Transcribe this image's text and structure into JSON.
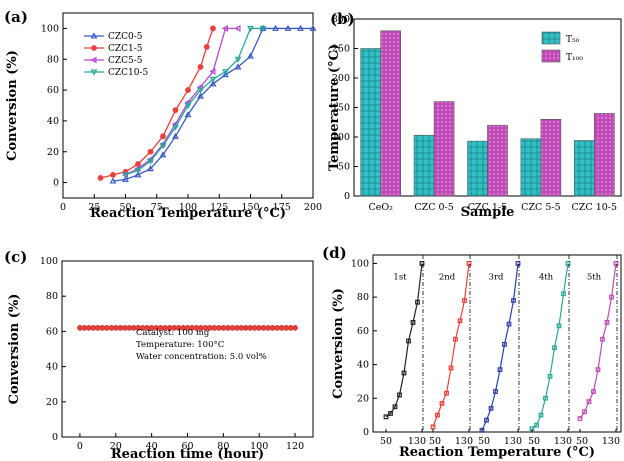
{
  "panels": {
    "a": "(a)",
    "b": "(b)",
    "c": "(c)",
    "d": "(d)"
  },
  "chart_data": [
    {
      "panel": "(a)",
      "type": "line",
      "xlabel": "Reaction Temperature (°C)",
      "ylabel": "Conversion (%)",
      "xlim": [
        0,
        200
      ],
      "ylim": [
        -10,
        110
      ],
      "xticks": [
        "0",
        "25",
        "50",
        "75",
        "100",
        "125",
        "150",
        "175",
        "200"
      ],
      "yticks": [
        "0",
        "20",
        "40",
        "60",
        "80",
        "100"
      ],
      "legend_position": "top-left",
      "series": [
        {
          "name": "CZC0-5",
          "color": "#3a5bc4",
          "marker": "triangle",
          "x": [
            40,
            50,
            60,
            70,
            80,
            90,
            100,
            110,
            120,
            130,
            140,
            150,
            160,
            170,
            180,
            190,
            200
          ],
          "y": [
            1,
            2,
            5,
            9,
            18,
            30,
            44,
            56,
            64,
            70,
            75,
            82,
            100,
            100,
            100,
            100,
            100
          ]
        },
        {
          "name": "CZC1-5",
          "color": "#e8403a",
          "marker": "circle",
          "x": [
            30,
            40,
            50,
            60,
            70,
            80,
            90,
            100,
            110,
            115,
            120
          ],
          "y": [
            3,
            5,
            7,
            12,
            20,
            30,
            47,
            60,
            75,
            88,
            100
          ]
        },
        {
          "name": "CZC5-5",
          "color": "#b44bcf",
          "marker": "triangle-left",
          "x": [
            50,
            60,
            70,
            80,
            90,
            100,
            110,
            120,
            130,
            140
          ],
          "y": [
            5,
            9,
            15,
            25,
            38,
            52,
            62,
            72,
            100,
            100
          ]
        },
        {
          "name": "CZC10-5",
          "color": "#27a79a",
          "marker": "triangle-down",
          "x": [
            50,
            60,
            70,
            80,
            90,
            100,
            110,
            120,
            130,
            140,
            150,
            160
          ],
          "y": [
            5,
            8,
            14,
            24,
            36,
            50,
            60,
            67,
            72,
            80,
            100,
            100
          ]
        }
      ]
    },
    {
      "panel": "(b)",
      "type": "bar",
      "xlabel": "Sample",
      "ylabel": "Temperature (°C)",
      "ylim": [
        0,
        300
      ],
      "yticks": [
        "0",
        "50",
        "100",
        "150",
        "200",
        "250",
        "300"
      ],
      "categories": [
        "CeO₂",
        "CZC 0-5",
        "CZC 1-5",
        "CZC 5-5",
        "CZC 10-5"
      ],
      "legend_position": "top-right",
      "series": [
        {
          "name": "T₅₀",
          "color": "#33c0c4",
          "values": [
            250,
            103,
            93,
            97,
            94
          ]
        },
        {
          "name": "T₁₀₀",
          "color": "#c04ab8",
          "values": [
            280,
            160,
            120,
            130,
            140
          ]
        }
      ]
    },
    {
      "panel": "(c)",
      "type": "scatter",
      "xlabel": "Reaction time (hour)",
      "ylabel": "Conversion (%)",
      "xlim": [
        -10,
        130
      ],
      "ylim": [
        0,
        100
      ],
      "xticks": [
        "0",
        "20",
        "40",
        "60",
        "80",
        "100",
        "120"
      ],
      "yticks": [
        "0",
        "20",
        "40",
        "60",
        "80",
        "100"
      ],
      "color": "#e8403a",
      "y_value": 62,
      "x_start": 0,
      "x_end": 120,
      "x_step": 2.5,
      "annotations": [
        "Catalyst: 100 mg",
        "Temperature: 100°C",
        "Water concentration: 5.0 vol%"
      ]
    },
    {
      "panel": "(d)",
      "type": "line",
      "xlabel": "Reaction Temperature (°C)",
      "ylabel": "Conversion (%)",
      "ylim": [
        0,
        105
      ],
      "yticks": [
        "0",
        "20",
        "40",
        "60",
        "80",
        "100"
      ],
      "xticks": [
        "50",
        "130",
        "50",
        "130",
        "50",
        "130",
        "50",
        "130",
        "50",
        "130"
      ],
      "runs": [
        {
          "label": "1st",
          "color": "#222222",
          "x": [
            50,
            60,
            70,
            80,
            90,
            100,
            110,
            120,
            130
          ],
          "y": [
            9,
            11,
            15,
            22,
            35,
            54,
            65,
            77,
            100
          ]
        },
        {
          "label": "2nd",
          "color": "#e8403a",
          "x": [
            50,
            60,
            70,
            80,
            90,
            100,
            110,
            120,
            130
          ],
          "y": [
            3,
            10,
            17,
            23,
            38,
            55,
            66,
            78,
            100
          ]
        },
        {
          "label": "3rd",
          "color": "#2b3fa8",
          "x": [
            50,
            60,
            70,
            80,
            90,
            100,
            110,
            120,
            130
          ],
          "y": [
            1,
            7,
            14,
            24,
            37,
            52,
            64,
            78,
            100
          ]
        },
        {
          "label": "4th",
          "color": "#27a79a",
          "x": [
            50,
            60,
            70,
            80,
            90,
            100,
            110,
            120,
            130
          ],
          "y": [
            2,
            4,
            10,
            20,
            33,
            50,
            63,
            82,
            100
          ]
        },
        {
          "label": "5th",
          "color": "#c04ab8",
          "x": [
            50,
            60,
            70,
            80,
            90,
            100,
            110,
            120,
            130
          ],
          "y": [
            8,
            12,
            18,
            24,
            37,
            55,
            65,
            80,
            100
          ]
        }
      ]
    }
  ]
}
